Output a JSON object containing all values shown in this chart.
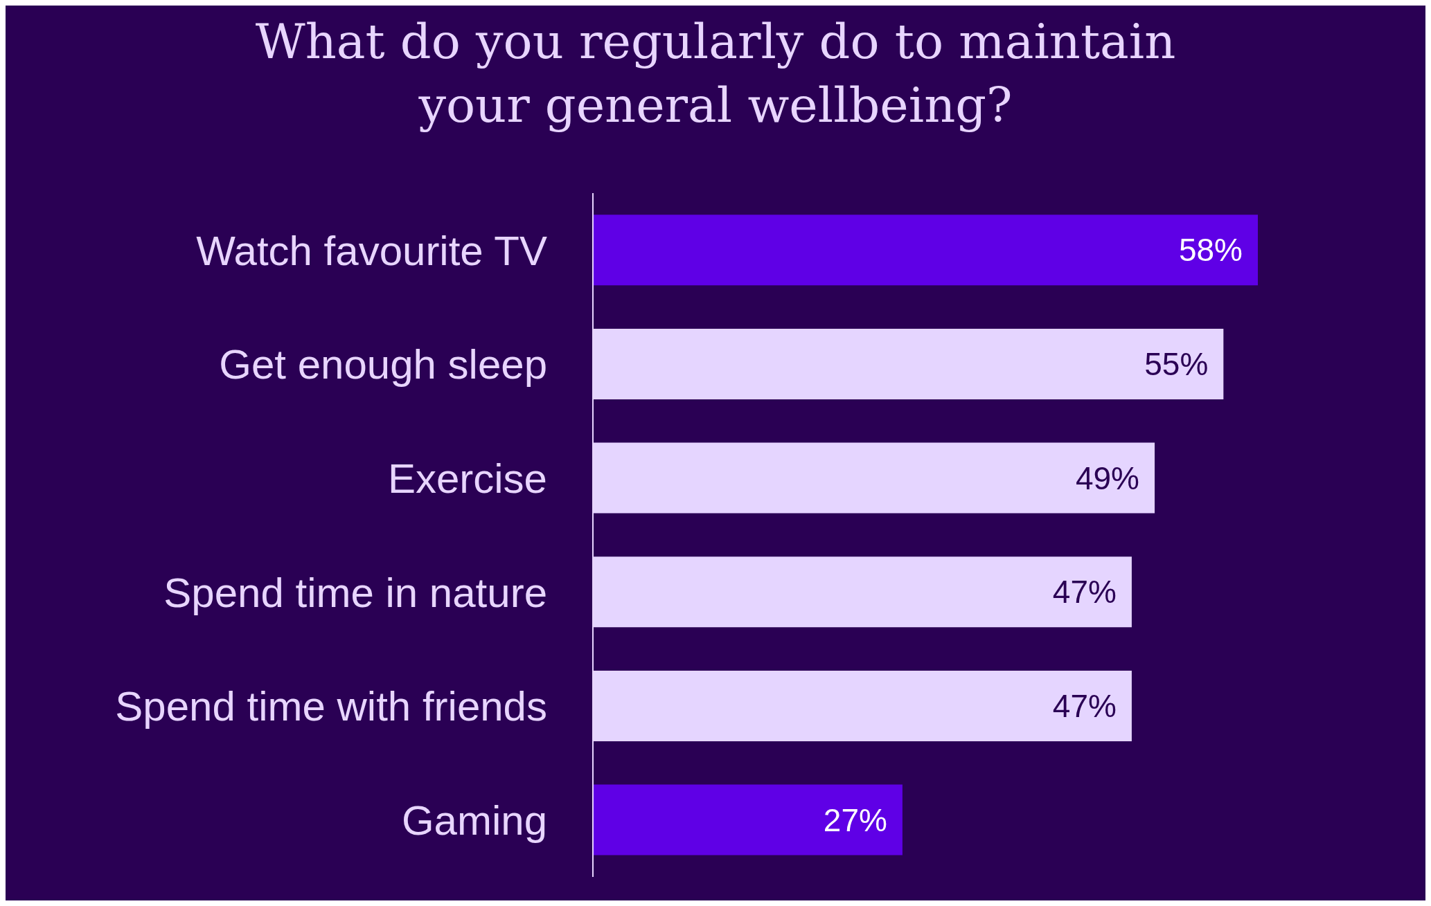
{
  "chart_data": {
    "type": "bar",
    "orientation": "horizontal",
    "title": "What do you regularly do to maintain your general wellbeing?",
    "categories": [
      "Watch favourite TV",
      "Get enough sleep",
      "Exercise",
      "Spend time in nature",
      "Spend time with friends",
      "Gaming"
    ],
    "values": [
      58,
      55,
      49,
      47,
      47,
      27
    ],
    "colors": [
      "#5f00e6",
      "#e5d5ff",
      "#e5d5ff",
      "#e5d5ff",
      "#e5d5ff",
      "#5f00e6"
    ],
    "value_labels": [
      "58%",
      "55%",
      "49%",
      "47%",
      "47%",
      "27%"
    ],
    "grid": false,
    "legend": false
  }
}
